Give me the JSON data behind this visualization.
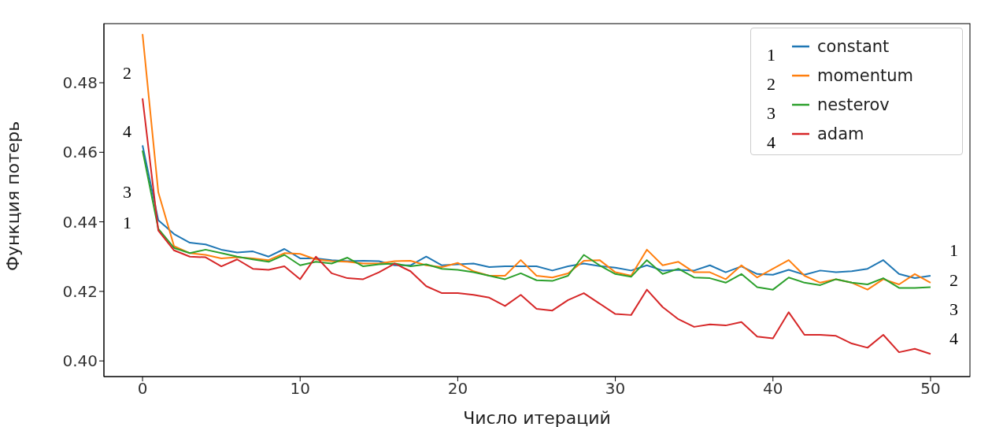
{
  "chart_data": {
    "type": "line",
    "xlabel": "Число итераций",
    "ylabel": "Функция потерь",
    "x": [
      0,
      1,
      2,
      3,
      4,
      5,
      6,
      7,
      8,
      9,
      10,
      11,
      12,
      13,
      14,
      15,
      16,
      17,
      18,
      19,
      20,
      21,
      22,
      23,
      24,
      25,
      26,
      27,
      28,
      29,
      30,
      31,
      32,
      33,
      34,
      35,
      36,
      37,
      38,
      39,
      40,
      41,
      42,
      43,
      44,
      45,
      46,
      47,
      48,
      49,
      50
    ],
    "series": [
      {
        "name": "constant",
        "color": "#1f77b4",
        "values": [
          0.462,
          0.4405,
          0.4365,
          0.434,
          0.4335,
          0.432,
          0.4312,
          0.4315,
          0.43,
          0.4322,
          0.4295,
          0.4295,
          0.429,
          0.4287,
          0.4288,
          0.4287,
          0.4275,
          0.4275,
          0.43,
          0.4275,
          0.4278,
          0.428,
          0.427,
          0.4272,
          0.4272,
          0.4272,
          0.426,
          0.4272,
          0.428,
          0.4273,
          0.4268,
          0.426,
          0.4275,
          0.426,
          0.4262,
          0.426,
          0.4275,
          0.4255,
          0.4272,
          0.425,
          0.4248,
          0.4262,
          0.4248,
          0.426,
          0.4255,
          0.4258,
          0.4265,
          0.429,
          0.425,
          0.4238,
          0.4245
        ]
      },
      {
        "name": "momentum",
        "color": "#ff7f0e",
        "values": [
          0.494,
          0.4485,
          0.433,
          0.431,
          0.4305,
          0.4295,
          0.4298,
          0.4295,
          0.429,
          0.431,
          0.4308,
          0.4292,
          0.4287,
          0.4285,
          0.428,
          0.428,
          0.4287,
          0.4288,
          0.4275,
          0.427,
          0.4282,
          0.4258,
          0.4245,
          0.4245,
          0.429,
          0.4245,
          0.424,
          0.4252,
          0.4288,
          0.429,
          0.4255,
          0.4245,
          0.432,
          0.4275,
          0.4285,
          0.4255,
          0.4255,
          0.4235,
          0.4275,
          0.424,
          0.4265,
          0.429,
          0.4245,
          0.4225,
          0.4235,
          0.4225,
          0.4205,
          0.4235,
          0.422,
          0.425,
          0.4225
        ]
      },
      {
        "name": "nesterov",
        "color": "#2ca02c",
        "values": [
          0.4605,
          0.438,
          0.4325,
          0.431,
          0.432,
          0.431,
          0.43,
          0.4292,
          0.4285,
          0.4305,
          0.4275,
          0.4285,
          0.428,
          0.4297,
          0.4272,
          0.4278,
          0.428,
          0.4272,
          0.4278,
          0.4265,
          0.4262,
          0.4255,
          0.4245,
          0.4235,
          0.4252,
          0.4232,
          0.423,
          0.4245,
          0.4305,
          0.4275,
          0.425,
          0.4242,
          0.429,
          0.425,
          0.4265,
          0.424,
          0.4238,
          0.4225,
          0.425,
          0.4212,
          0.4205,
          0.424,
          0.4225,
          0.4218,
          0.4235,
          0.4225,
          0.422,
          0.4238,
          0.421,
          0.421,
          0.4212
        ]
      },
      {
        "name": "adam",
        "color": "#d62728",
        "values": [
          0.4755,
          0.4375,
          0.4318,
          0.43,
          0.4298,
          0.4272,
          0.4292,
          0.4265,
          0.4262,
          0.4272,
          0.4235,
          0.43,
          0.4252,
          0.4238,
          0.4235,
          0.4255,
          0.428,
          0.4258,
          0.4215,
          0.4195,
          0.4195,
          0.419,
          0.4182,
          0.4158,
          0.419,
          0.415,
          0.4145,
          0.4175,
          0.4195,
          0.4165,
          0.4135,
          0.4132,
          0.4205,
          0.4155,
          0.412,
          0.4098,
          0.4105,
          0.4102,
          0.4112,
          0.407,
          0.4065,
          0.414,
          0.4075,
          0.4075,
          0.4072,
          0.405,
          0.4038,
          0.4075,
          0.4025,
          0.4035,
          0.402
        ]
      }
    ],
    "xlim": [
      -2.45,
      52.5
    ],
    "ylim": [
      0.3955,
      0.497
    ],
    "xticks": [
      0,
      10,
      20,
      30,
      40,
      50
    ],
    "yticks": [
      {
        "value": 0.4,
        "label": "0.40"
      },
      {
        "value": 0.42,
        "label": "0.42"
      },
      {
        "value": 0.44,
        "label": "0.44"
      },
      {
        "value": 0.46,
        "label": "0.46"
      },
      {
        "value": 0.48,
        "label": "0.48"
      }
    ],
    "grid": false,
    "legend": "top right",
    "marker": "none",
    "line_style": "solid",
    "annotations": [
      "2",
      "4",
      "3",
      "1",
      "1",
      "2",
      "3",
      "4",
      "1",
      "2",
      "3",
      "4"
    ]
  }
}
